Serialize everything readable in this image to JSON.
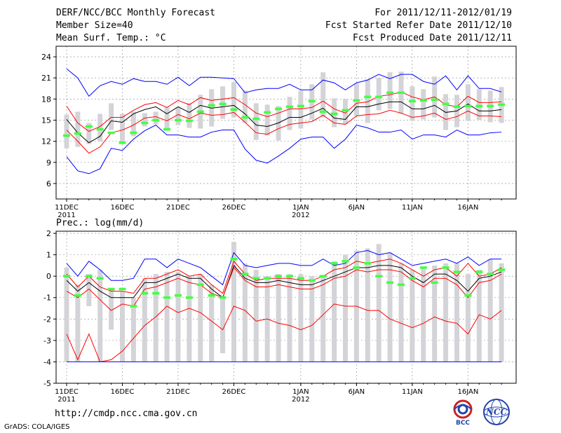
{
  "header": {
    "title": "DERF/NCC/BCC Monthly Forecast",
    "member_size": "Member Size=40",
    "variable": "Mean Surf. Temp.: °C",
    "period": "For 2011/12/11-2012/01/19",
    "fcst_start": "Fcst Started Refer Date 2011/12/10",
    "fcst_produced": "Fcst Produced Date 2011/12/11"
  },
  "footer": {
    "url": "http://cmdp.ncc.cma.gov.cn",
    "grads": "GrADS: COLA/IGES",
    "logo_bcc": "BCC",
    "logo_ncc": "NCC"
  },
  "colors": {
    "max_line": "#0000ff",
    "min_line": "#0000ff",
    "pct_line": "#ff0000",
    "mean_line": "#000000",
    "obs_mark": "#44ff44",
    "box": "#d4d4d8",
    "grid": "#888888"
  },
  "chart_data": [
    {
      "type": "line",
      "title": "Mean Surf. Temp.: °C",
      "unit": "°C",
      "x": [
        "2011-12-11",
        "2011-12-12",
        "2011-12-13",
        "2011-12-14",
        "2011-12-15",
        "2011-12-16",
        "2011-12-17",
        "2011-12-18",
        "2011-12-19",
        "2011-12-20",
        "2011-12-21",
        "2011-12-22",
        "2011-12-23",
        "2011-12-24",
        "2011-12-25",
        "2011-12-26",
        "2011-12-27",
        "2011-12-28",
        "2011-12-29",
        "2011-12-30",
        "2011-12-31",
        "2012-01-01",
        "2012-01-02",
        "2012-01-03",
        "2012-01-04",
        "2012-01-05",
        "2012-01-06",
        "2012-01-07",
        "2012-01-08",
        "2012-01-09",
        "2012-01-10",
        "2012-01-11",
        "2012-01-12",
        "2012-01-13",
        "2012-01-14",
        "2012-01-15",
        "2012-01-16",
        "2012-01-17",
        "2012-01-18",
        "2012-01-19"
      ],
      "x_tick_labels": [
        "11DEC",
        "16DEC",
        "21DEC",
        "26DEC",
        "1JAN",
        "6JAN",
        "11JAN",
        "16JAN"
      ],
      "x_tick_days": [
        0,
        5,
        10,
        15,
        21,
        26,
        31,
        36
      ],
      "x_year_labels": [
        {
          "day": 0,
          "label": "2011"
        },
        {
          "day": 21,
          "label": "2012"
        }
      ],
      "ylim": [
        3.8,
        25.5
      ],
      "yticks": [
        6,
        9,
        12,
        15,
        18,
        21,
        24
      ],
      "series": [
        {
          "name": "max",
          "values": [
            22.3,
            21.0,
            18.4,
            19.9,
            20.5,
            20.1,
            20.9,
            20.5,
            20.5,
            20.1,
            21.1,
            19.9,
            21.1,
            21.1,
            21.0,
            20.9,
            18.9,
            19.3,
            19.5,
            19.5,
            20.1,
            19.3,
            19.3,
            20.7,
            20.3,
            19.3,
            20.3,
            20.7,
            21.5,
            20.9,
            21.5,
            21.5,
            20.5,
            20.1,
            21.3,
            19.3,
            21.3,
            19.5,
            19.5,
            19.0
          ]
        },
        {
          "name": "upper",
          "values": [
            17.0,
            14.6,
            13.4,
            14.1,
            15.4,
            15.4,
            16.4,
            17.2,
            17.5,
            16.8,
            17.8,
            17.2,
            18.2,
            17.8,
            18.0,
            18.2,
            17.2,
            16.0,
            15.5,
            16.0,
            16.6,
            16.6,
            16.8,
            17.7,
            16.6,
            16.0,
            17.4,
            17.6,
            18.4,
            18.6,
            19.0,
            18.3,
            17.9,
            18.3,
            17.2,
            16.9,
            18.4,
            17.5,
            17.5,
            17.6
          ]
        },
        {
          "name": "mean",
          "values": [
            15.1,
            13.2,
            11.8,
            12.7,
            14.9,
            14.7,
            15.9,
            16.5,
            16.9,
            15.9,
            16.9,
            16.1,
            17.1,
            16.7,
            16.9,
            17.1,
            15.9,
            14.3,
            14.1,
            14.6,
            15.4,
            15.4,
            16.0,
            16.7,
            15.3,
            15.1,
            16.9,
            16.9,
            17.3,
            17.6,
            17.6,
            16.6,
            16.6,
            17.1,
            16.1,
            16.3,
            17.3,
            16.3,
            16.3,
            16.5
          ]
        },
        {
          "name": "lower",
          "values": [
            13.6,
            12.0,
            10.3,
            11.2,
            13.2,
            13.6,
            14.3,
            15.3,
            15.5,
            14.9,
            15.8,
            15.2,
            16.0,
            15.7,
            15.8,
            16.1,
            14.7,
            13.2,
            13.0,
            13.8,
            14.4,
            14.6,
            14.8,
            15.7,
            14.6,
            14.4,
            15.6,
            15.8,
            15.9,
            16.4,
            16.0,
            15.4,
            15.6,
            16.0,
            15.1,
            15.5,
            16.3,
            15.6,
            15.6,
            15.5
          ]
        },
        {
          "name": "min",
          "values": [
            9.8,
            7.8,
            7.4,
            8.1,
            11.0,
            10.7,
            12.3,
            13.5,
            14.3,
            12.9,
            12.9,
            12.6,
            12.6,
            13.3,
            13.6,
            13.6,
            10.9,
            9.3,
            8.9,
            9.9,
            11.0,
            12.3,
            12.6,
            12.6,
            11.0,
            12.3,
            14.3,
            13.9,
            13.3,
            13.3,
            13.6,
            12.3,
            12.9,
            12.9,
            12.6,
            13.6,
            12.9,
            12.9,
            13.2,
            13.3
          ]
        },
        {
          "name": "observed",
          "values": [
            12.8,
            13.1,
            14.1,
            13.7,
            13.2,
            11.8,
            13.2,
            14.6,
            15.0,
            13.7,
            15.0,
            14.9,
            16.2,
            17.1,
            17.3,
            16.5,
            15.4,
            15.2,
            16.1,
            16.6,
            16.9,
            17.0,
            17.7,
            16.2,
            15.9,
            16.4,
            17.8,
            18.3,
            18.3,
            18.9,
            18.9,
            17.7,
            17.8,
            17.9,
            17.3,
            16.9,
            17.0,
            17.0,
            17.0,
            17.2
          ]
        }
      ],
      "boxes": [
        {
          "low": 11.0,
          "high": 15.8
        },
        {
          "low": 11.2,
          "high": 16.2
        },
        {
          "low": 11.6,
          "high": 14.6
        },
        {
          "low": 12.0,
          "high": 15.9
        },
        {
          "low": 13.6,
          "high": 17.4
        },
        {
          "low": 11.6,
          "high": 15.9
        },
        {
          "low": 12.7,
          "high": 16.2
        },
        {
          "low": 14.1,
          "high": 16.0
        },
        {
          "low": 14.4,
          "high": 16.2
        },
        {
          "low": 13.5,
          "high": 16.8
        },
        {
          "low": 14.3,
          "high": 16.8
        },
        {
          "low": 13.9,
          "high": 17.4
        },
        {
          "low": 13.8,
          "high": 18.6
        },
        {
          "low": 14.1,
          "high": 19.4
        },
        {
          "low": 15.2,
          "high": 19.8
        },
        {
          "low": 15.4,
          "high": 20.4
        },
        {
          "low": 14.6,
          "high": 19.2
        },
        {
          "low": 12.2,
          "high": 17.4
        },
        {
          "low": 12.8,
          "high": 17.2
        },
        {
          "low": 12.1,
          "high": 17.0
        },
        {
          "low": 13.6,
          "high": 18.3
        },
        {
          "low": 13.8,
          "high": 19.2
        },
        {
          "low": 15.1,
          "high": 20.1
        },
        {
          "low": 15.4,
          "high": 21.8
        },
        {
          "low": 14.0,
          "high": 18.1
        },
        {
          "low": 14.4,
          "high": 18.0
        },
        {
          "low": 15.6,
          "high": 20.2
        },
        {
          "low": 14.6,
          "high": 20.8
        },
        {
          "low": 16.4,
          "high": 21.0
        },
        {
          "low": 16.6,
          "high": 21.8
        },
        {
          "low": 15.9,
          "high": 21.9
        },
        {
          "low": 14.9,
          "high": 19.8
        },
        {
          "low": 15.1,
          "high": 19.4
        },
        {
          "low": 15.4,
          "high": 21.2
        },
        {
          "low": 13.6,
          "high": 18.7
        },
        {
          "low": 14.0,
          "high": 18.6
        },
        {
          "low": 14.9,
          "high": 20.1
        },
        {
          "low": 15.0,
          "high": 19.4
        },
        {
          "low": 14.7,
          "high": 19.2
        },
        {
          "low": 14.6,
          "high": 19.7
        }
      ]
    },
    {
      "type": "line",
      "title": "Prec.: log(mm/d)",
      "unit": "log(mm/d)",
      "x_tick_labels": [
        "11DEC",
        "16DEC",
        "21DEC",
        "26DEC",
        "1JAN",
        "6JAN",
        "11JAN",
        "16JAN"
      ],
      "x_tick_days": [
        0,
        5,
        10,
        15,
        21,
        26,
        31,
        36
      ],
      "x_year_labels": [
        {
          "day": 0,
          "label": "2011"
        },
        {
          "day": 21,
          "label": "2012"
        }
      ],
      "ylim": [
        -5,
        2.1
      ],
      "yticks": [
        -5,
        -4,
        -3,
        -2,
        -1,
        0,
        1,
        2
      ],
      "series": [
        {
          "name": "max",
          "values": [
            0.6,
            0.0,
            0.7,
            0.3,
            -0.2,
            -0.2,
            -0.1,
            0.8,
            0.8,
            0.4,
            0.8,
            0.6,
            0.4,
            0.0,
            -0.4,
            1.1,
            0.5,
            0.4,
            0.5,
            0.6,
            0.6,
            0.5,
            0.5,
            0.8,
            0.5,
            0.6,
            1.1,
            1.2,
            1.0,
            1.1,
            0.8,
            0.5,
            0.6,
            0.7,
            0.8,
            0.6,
            0.9,
            0.5,
            0.8,
            0.8
          ]
        },
        {
          "name": "upper",
          "values": [
            0.1,
            -0.5,
            0.0,
            -0.5,
            -0.7,
            -0.7,
            -0.8,
            -0.1,
            -0.1,
            0.1,
            0.3,
            0.0,
            0.1,
            -0.4,
            -0.8,
            0.7,
            0.1,
            -0.2,
            -0.1,
            -0.1,
            -0.1,
            -0.2,
            -0.2,
            0.0,
            0.3,
            0.4,
            0.7,
            0.6,
            0.7,
            0.8,
            0.6,
            0.3,
            0.0,
            0.3,
            0.4,
            0.0,
            0.6,
            0.0,
            0.1,
            0.4
          ]
        },
        {
          "name": "mean",
          "values": [
            -0.2,
            -0.7,
            -0.3,
            -0.7,
            -1.0,
            -1.0,
            -1.0,
            -0.3,
            -0.3,
            -0.1,
            0.1,
            -0.1,
            -0.1,
            -0.6,
            -1.0,
            0.5,
            -0.1,
            -0.3,
            -0.3,
            -0.2,
            -0.3,
            -0.4,
            -0.4,
            -0.2,
            0.0,
            0.2,
            0.4,
            0.4,
            0.5,
            0.5,
            0.4,
            0.0,
            -0.3,
            0.1,
            0.1,
            -0.2,
            -0.7,
            -0.1,
            0.0,
            0.2
          ]
        },
        {
          "name": "lower",
          "values": [
            -0.7,
            -1.0,
            -0.6,
            -1.1,
            -1.6,
            -1.3,
            -1.4,
            -0.6,
            -0.5,
            -0.3,
            -0.1,
            -0.3,
            -0.4,
            -0.8,
            -1.0,
            0.4,
            -0.2,
            -0.5,
            -0.5,
            -0.4,
            -0.5,
            -0.6,
            -0.6,
            -0.4,
            -0.1,
            0.0,
            0.3,
            0.2,
            0.3,
            0.3,
            0.2,
            -0.2,
            -0.5,
            -0.1,
            -0.1,
            -0.4,
            -1.0,
            -0.3,
            -0.2,
            0.1
          ]
        },
        {
          "name": "p10",
          "values": [
            -2.7,
            -3.9,
            -2.7,
            -4.0,
            -3.9,
            -3.5,
            -2.9,
            -2.3,
            -1.9,
            -1.4,
            -1.7,
            -1.5,
            -1.7,
            -2.1,
            -2.5,
            -1.4,
            -1.6,
            -2.1,
            -2.0,
            -2.2,
            -2.3,
            -2.5,
            -2.3,
            -1.8,
            -1.3,
            -1.4,
            -1.4,
            -1.6,
            -1.6,
            -2.0,
            -2.2,
            -2.4,
            -2.2,
            -1.9,
            -2.1,
            -2.2,
            -2.7,
            -1.8,
            -2.0,
            -1.6
          ]
        },
        {
          "name": "min",
          "values": [
            -4.0,
            -4.0,
            -4.0,
            -4.0,
            -4.0,
            -4.0,
            -4.0,
            -4.0,
            -4.0,
            -4.0,
            -4.0,
            -4.0,
            -4.0,
            -4.0,
            -4.0,
            -4.0,
            -4.0,
            -4.0,
            -4.0,
            -4.0,
            -4.0,
            -4.0,
            -4.0,
            -4.0,
            -4.0,
            -4.0,
            -4.0,
            -4.0,
            -4.0,
            -4.0,
            -4.0,
            -4.0,
            -4.0,
            -4.0,
            -4.0,
            -4.0,
            -4.0,
            -4.0,
            -4.0,
            -4.0
          ]
        },
        {
          "name": "observed",
          "values": [
            0.0,
            -0.9,
            0.0,
            -0.1,
            -0.6,
            -0.6,
            -1.4,
            -0.8,
            -0.8,
            -1.0,
            -0.9,
            -1.0,
            -0.4,
            -0.9,
            -1.0,
            0.8,
            0.1,
            -0.1,
            -0.1,
            0.0,
            0.0,
            -0.1,
            -0.2,
            0.0,
            0.6,
            0.7,
            0.4,
            0.6,
            0.0,
            -0.3,
            -0.4,
            -0.1,
            0.4,
            -0.3,
            0.4,
            0.2,
            -0.9,
            0.2,
            0.1,
            0.3
          ]
        }
      ],
      "boxes": [
        {
          "low": -4.0,
          "high": 0.4
        },
        {
          "low": -4.0,
          "high": -0.4
        },
        {
          "low": -1.4,
          "high": 0.1
        },
        {
          "low": -4.0,
          "high": 0.3
        },
        {
          "low": -2.5,
          "high": -0.6
        },
        {
          "low": -4.0,
          "high": -0.7
        },
        {
          "low": -4.0,
          "high": -1.0
        },
        {
          "low": -4.0,
          "high": -0.1
        },
        {
          "low": -4.0,
          "high": 0.1
        },
        {
          "low": -4.0,
          "high": 0.2
        },
        {
          "low": -4.0,
          "high": 0.2
        },
        {
          "low": -4.0,
          "high": 0.0
        },
        {
          "low": -4.0,
          "high": 0.1
        },
        {
          "low": -4.0,
          "high": -0.4
        },
        {
          "low": -3.6,
          "high": -0.9
        },
        {
          "low": -4.0,
          "high": 1.6
        },
        {
          "low": -4.0,
          "high": 0.6
        },
        {
          "low": -4.0,
          "high": 0.3
        },
        {
          "low": -4.0,
          "high": 0.0
        },
        {
          "low": -4.0,
          "high": 0.1
        },
        {
          "low": -4.0,
          "high": 0.1
        },
        {
          "low": -4.0,
          "high": 0.1
        },
        {
          "low": -4.0,
          "high": 0.0
        },
        {
          "low": -4.0,
          "high": 0.0
        },
        {
          "low": -4.0,
          "high": 0.7
        },
        {
          "low": -4.0,
          "high": 1.0
        },
        {
          "low": -4.0,
          "high": 1.2
        },
        {
          "low": -4.0,
          "high": 1.3
        },
        {
          "low": -4.0,
          "high": 1.5
        },
        {
          "low": -4.0,
          "high": 1.1
        },
        {
          "low": -4.0,
          "high": 0.6
        },
        {
          "low": -4.0,
          "high": 0.3
        },
        {
          "low": -4.0,
          "high": 0.4
        },
        {
          "low": -4.0,
          "high": 0.5
        },
        {
          "low": -4.0,
          "high": 0.6
        },
        {
          "low": -4.0,
          "high": 0.6
        },
        {
          "low": -4.0,
          "high": 0.1
        },
        {
          "low": -4.0,
          "high": 0.3
        },
        {
          "low": -4.0,
          "high": 0.8
        },
        {
          "low": -4.0,
          "high": 0.6
        }
      ]
    }
  ]
}
